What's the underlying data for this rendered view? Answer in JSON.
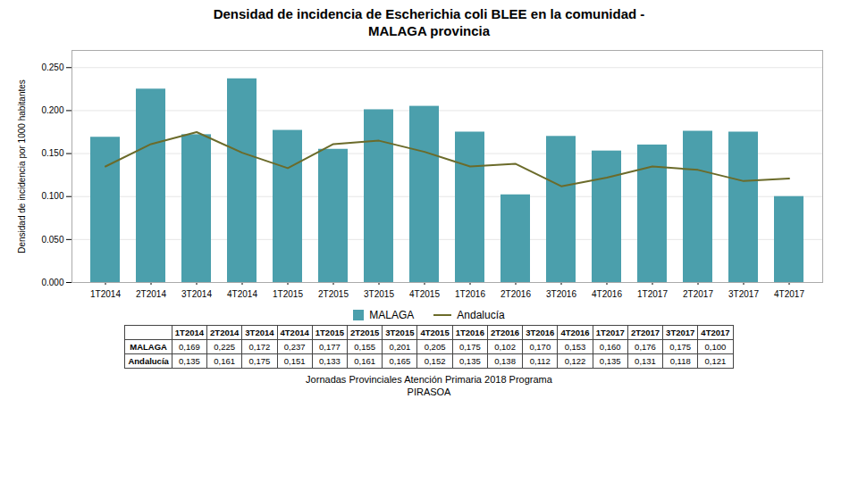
{
  "chart_data": {
    "type": "bar",
    "title": "Densidad de incidencia de Escherichia coli BLEE en la comunidad -",
    "subtitle": "MALAGA provincia",
    "ylabel": "Densidad de incidencia por 1000 habitantes",
    "categories": [
      "1T2014",
      "2T2014",
      "3T2014",
      "4T2014",
      "1T2015",
      "2T2015",
      "3T2015",
      "4T2015",
      "1T2016",
      "2T2016",
      "3T2016",
      "4T2016",
      "1T2017",
      "2T2017",
      "3T2017",
      "4T2017"
    ],
    "series": [
      {
        "name": "MALAGA",
        "type": "bar",
        "color": "#4b9fac",
        "values": [
          0.169,
          0.225,
          0.172,
          0.237,
          0.177,
          0.155,
          0.201,
          0.205,
          0.175,
          0.102,
          0.17,
          0.153,
          0.16,
          0.176,
          0.175,
          0.1
        ],
        "value_labels": [
          "0,169",
          "0,225",
          "0,172",
          "0,237",
          "0,177",
          "0,155",
          "0,201",
          "0,205",
          "0,175",
          "0,102",
          "0,170",
          "0,153",
          "0,160",
          "0,176",
          "0,175",
          "0,100"
        ]
      },
      {
        "name": "Andalucía",
        "type": "line",
        "color": "#6b6b2a",
        "values": [
          0.135,
          0.161,
          0.175,
          0.151,
          0.133,
          0.161,
          0.165,
          0.152,
          0.135,
          0.138,
          0.112,
          0.122,
          0.135,
          0.131,
          0.118,
          0.121
        ],
        "value_labels": [
          "0,135",
          "0,161",
          "0,175",
          "0,151",
          "0,133",
          "0,161",
          "0,165",
          "0,152",
          "0,135",
          "0,138",
          "0,112",
          "0,122",
          "0,135",
          "0,131",
          "0,118",
          "0,121"
        ]
      }
    ],
    "ylim": [
      0,
      0.27
    ],
    "yticks": [
      {
        "value": 0,
        "label": "0.000"
      },
      {
        "value": 0.05,
        "label": "0.050"
      },
      {
        "value": 0.1,
        "label": "0.100"
      },
      {
        "value": 0.15,
        "label": "0.150"
      },
      {
        "value": 0.2,
        "label": "0.200"
      },
      {
        "value": 0.25,
        "label": "0.250"
      }
    ],
    "grid": true,
    "legend": "bottom",
    "annotations": [
      "Jornadas Provinciales Atención Primaria 2018  Programa",
      "PIRASOA"
    ]
  }
}
